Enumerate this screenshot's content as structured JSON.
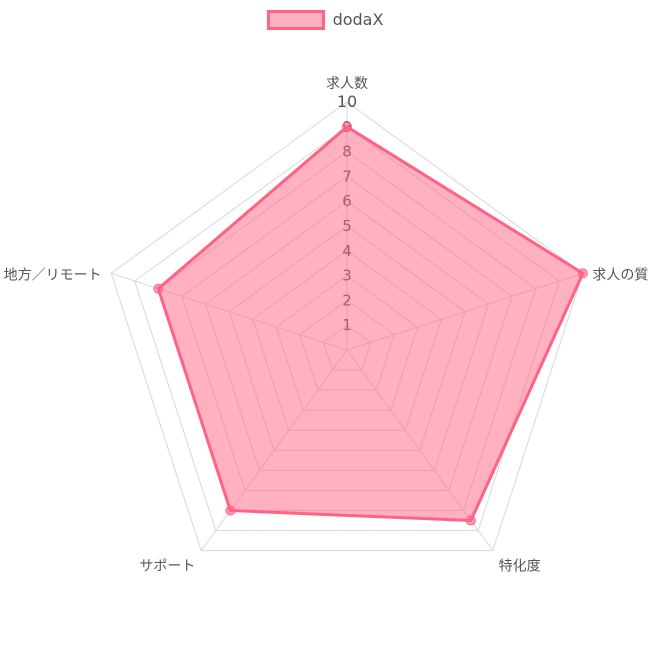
{
  "chart_data": {
    "type": "radar",
    "categories": [
      "求人数",
      "求人の質",
      "特化度",
      "サポート",
      "地方／リモート"
    ],
    "series": [
      {
        "name": "dodaX",
        "values": [
          9,
          10,
          8.5,
          8,
          8
        ]
      }
    ],
    "rlim": [
      0,
      10
    ],
    "ticks": [
      "1",
      "2",
      "3",
      "4",
      "5",
      "6",
      "7",
      "8",
      "9",
      "10"
    ],
    "legend_position": "top",
    "colors": {
      "series_fill": "rgba(255, 99, 132, 0.5)",
      "series_line": "#ff6384",
      "grid": "#d8d8d8",
      "label": "#555555"
    }
  }
}
